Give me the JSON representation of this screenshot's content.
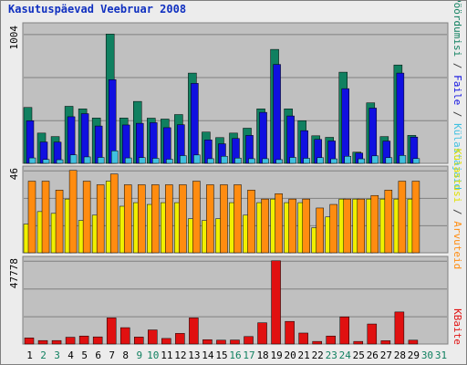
{
  "title": "Kasutuspäevad Veebruar 2008",
  "right_labels": {
    "panel1": [
      {
        "text": "Pöördumisi",
        "color": "#108060"
      },
      {
        "text": " / ",
        "color": "#404040"
      },
      {
        "text": "Faile",
        "color": "#1010e0"
      },
      {
        "text": " / ",
        "color": "#404040"
      },
      {
        "text": "Külastajaid",
        "color": "#40c0e0"
      }
    ],
    "panel2": [
      {
        "text": "Külastusi",
        "color": "#e0e000"
      },
      {
        "text": " / ",
        "color": "#404040"
      },
      {
        "text": "Arvuteid",
        "color": "#ff8c10"
      }
    ],
    "panel3": [
      {
        "text": "KBaite",
        "color": "#e01010"
      }
    ]
  },
  "colors": {
    "hits": "#108060",
    "files": "#1010e0",
    "visitors": "#40c0e0",
    "visits": "#f0f000",
    "sites": "#ff8c10",
    "kbytes": "#e01010",
    "weekday_label": "#000000",
    "weekend_label": "#108060"
  },
  "chart_data": [
    {
      "type": "bar",
      "categories": [
        "1",
        "2",
        "3",
        "4",
        "5",
        "6",
        "7",
        "8",
        "9",
        "10",
        "11",
        "12",
        "13",
        "14",
        "15",
        "16",
        "17",
        "18",
        "19",
        "20",
        "21",
        "22",
        "23",
        "24",
        "25",
        "26",
        "27",
        "28",
        "29",
        "30",
        "31"
      ],
      "weekend_categories": [
        "2",
        "3",
        "9",
        "10",
        "16",
        "17",
        "23",
        "24",
        "30",
        "31"
      ],
      "ymax_label": "1004",
      "ylim": [
        0,
        1004
      ],
      "series": [
        {
          "name": "Pöördumisi",
          "values": [
            434,
            235,
            208,
            443,
            423,
            352,
            1004,
            352,
            481,
            351,
            344,
            379,
            701,
            243,
            200,
            235,
            273,
            423,
            885,
            423,
            331,
            214,
            202,
            708,
            87,
            470,
            208,
            764,
            217,
            null,
            null
          ]
        },
        {
          "name": "Faile",
          "values": [
            331,
            166,
            165,
            362,
            386,
            290,
            650,
            298,
            311,
            316,
            277,
            300,
            621,
            182,
            152,
            193,
            217,
            396,
            768,
            368,
            254,
            186,
            174,
            580,
            80,
            429,
            173,
            701,
            204,
            null,
            null
          ]
        },
        {
          "name": "Külastajaid",
          "values": [
            42,
            30,
            28,
            66,
            50,
            46,
            97,
            42,
            45,
            39,
            32,
            60,
            65,
            36,
            55,
            41,
            36,
            36,
            29,
            46,
            39,
            44,
            35,
            55,
            35,
            58,
            44,
            61,
            37,
            null,
            null
          ]
        }
      ]
    },
    {
      "type": "bar",
      "categories": [
        "1",
        "2",
        "3",
        "4",
        "5",
        "6",
        "7",
        "8",
        "9",
        "10",
        "11",
        "12",
        "13",
        "14",
        "15",
        "16",
        "17",
        "18",
        "19",
        "20",
        "21",
        "22",
        "23",
        "24",
        "25",
        "26",
        "27",
        "28",
        "29",
        "30",
        "31"
      ],
      "ymax_label": "46",
      "ylim": [
        0,
        46
      ],
      "series": [
        {
          "name": "Külastusi",
          "values": [
            16,
            23,
            22,
            30,
            18,
            21,
            40,
            26,
            28,
            27,
            28,
            28,
            19,
            18,
            19,
            28,
            21,
            28,
            30,
            28,
            28,
            14,
            20,
            30,
            30,
            30,
            30,
            30,
            30,
            null,
            null
          ]
        },
        {
          "name": "Arvuteid",
          "values": [
            40,
            40,
            35,
            46,
            40,
            38,
            44,
            38,
            38,
            38,
            38,
            38,
            40,
            38,
            38,
            38,
            35,
            30,
            33,
            30,
            30,
            25,
            27,
            30,
            30,
            32,
            35,
            40,
            40,
            null,
            null
          ]
        }
      ]
    },
    {
      "type": "bar",
      "categories": [
        "1",
        "2",
        "3",
        "4",
        "5",
        "6",
        "7",
        "8",
        "9",
        "10",
        "11",
        "12",
        "13",
        "14",
        "15",
        "16",
        "17",
        "18",
        "19",
        "20",
        "21",
        "22",
        "23",
        "24",
        "25",
        "26",
        "27",
        "28",
        "29",
        "30",
        "31"
      ],
      "ymax_label": "47778",
      "ylim": [
        0,
        47778
      ],
      "series": [
        {
          "name": "KBaite",
          "values": [
            3500,
            2000,
            2000,
            3900,
            4600,
            4100,
            15000,
            9400,
            4000,
            8100,
            3200,
            6100,
            15000,
            2500,
            2200,
            2300,
            4300,
            12200,
            47778,
            13000,
            6300,
            1500,
            4600,
            15600,
            1500,
            11500,
            1900,
            18400,
            2200,
            null,
            null
          ]
        }
      ]
    }
  ]
}
